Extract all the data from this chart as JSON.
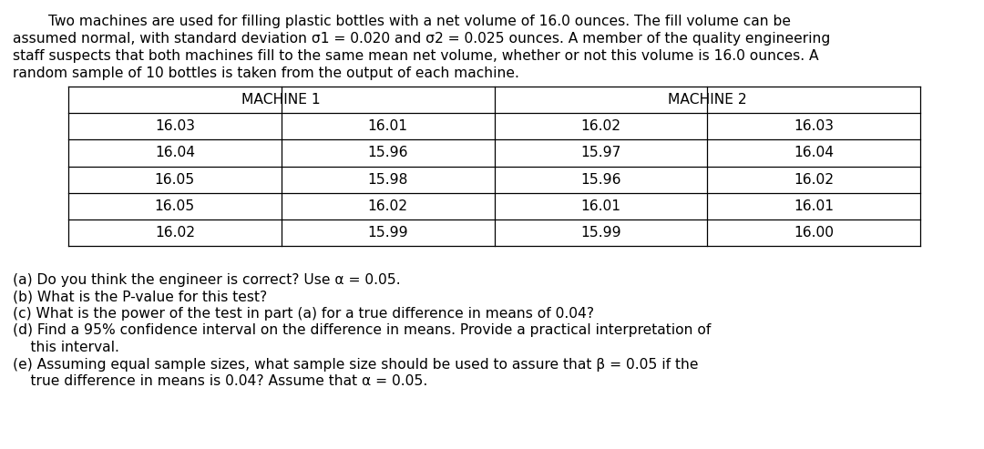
{
  "intro_line1": "        Two machines are used for filling plastic bottles with a net volume of 16.0 ounces. The fill volume can be",
  "intro_line2": "assumed normal, with standard deviation σ1 = 0.020 and σ2 = 0.025 ounces. A member of the quality engineering",
  "intro_line3": "staff suspects that both machines fill to the same mean net volume, whether or not this volume is 16.0 ounces. A",
  "intro_line4": "random sample of 10 bottles is taken from the output of each machine.",
  "machine1_header": "MACHINE 1",
  "machine2_header": "MACHINE 2",
  "machine1_col1": [
    "16.03",
    "16.04",
    "16.05",
    "16.05",
    "16.02"
  ],
  "machine1_col2": [
    "16.01",
    "15.96",
    "15.98",
    "16.02",
    "15.99"
  ],
  "machine2_col1": [
    "16.02",
    "15.97",
    "15.96",
    "16.01",
    "15.99"
  ],
  "machine2_col2": [
    "16.03",
    "16.04",
    "16.02",
    "16.01",
    "16.00"
  ],
  "q_a": "(a) Do you think the engineer is correct? Use α = 0.05.",
  "q_b": "(b) What is the P-value for this test?",
  "q_c": "(c) What is the power of the test in part (a) for a true difference in means of 0.04?",
  "q_d1": "(d) Find a 95% confidence interval on the difference in means. Provide a practical interpretation of",
  "q_d2": "    this interval.",
  "q_e1": "(e) Assuming equal sample sizes, what sample size should be used to assure that β = 0.05 if the",
  "q_e2": "    true difference in means is 0.04? Assume that α = 0.05.",
  "bg_color": "#ffffff",
  "text_color": "#000000",
  "font_size": 11.2
}
